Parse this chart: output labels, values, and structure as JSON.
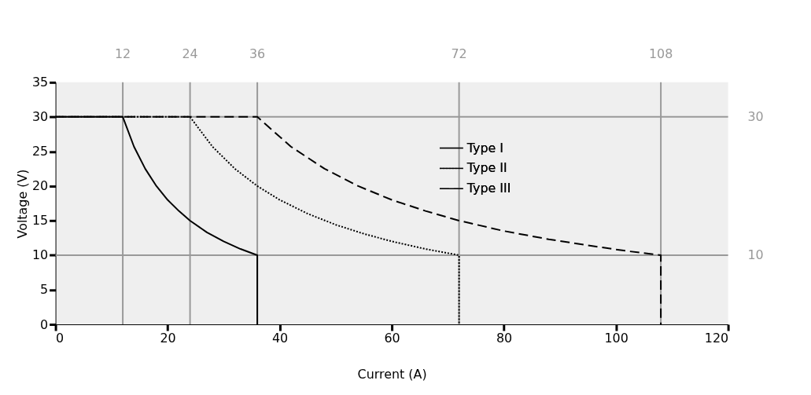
{
  "chart_data": {
    "type": "line",
    "xlabel": "Current (A)",
    "ylabel": "Voltage (V)",
    "xlim": [
      0,
      120
    ],
    "xticks": [
      0,
      20,
      40,
      60,
      80,
      100,
      120
    ],
    "ylim": [
      0,
      35
    ],
    "yticks": [
      0,
      5,
      10,
      15,
      20,
      25,
      30,
      35
    ],
    "grid": false,
    "legend": "right",
    "marker": "none",
    "series": [
      {
        "name": "Type I",
        "color": "#000000",
        "line_style": "solid",
        "x": [
          0,
          12,
          14,
          16,
          18,
          20,
          22,
          24,
          27,
          30,
          33,
          36,
          36
        ],
        "values": [
          30,
          30,
          25.7,
          22.5,
          20,
          18,
          16.4,
          15,
          13.3,
          12,
          10.9,
          10,
          0
        ]
      },
      {
        "name": "Type II",
        "color": "#000000",
        "line_style": "dotted",
        "x": [
          0,
          24,
          28,
          32,
          36,
          40,
          45,
          50,
          55,
          60,
          66,
          72,
          72
        ],
        "values": [
          30,
          30,
          25.7,
          22.5,
          20,
          18,
          16,
          14.4,
          13.1,
          12,
          10.9,
          10,
          0
        ]
      },
      {
        "name": "Type III",
        "color": "#000000",
        "line_style": "dashed",
        "x": [
          0,
          36,
          42,
          48,
          54,
          60,
          66,
          72,
          80,
          88,
          96,
          102,
          108,
          108
        ],
        "values": [
          30,
          30,
          25.7,
          22.5,
          20,
          18,
          16.4,
          15,
          13.5,
          12.3,
          11.3,
          10.6,
          10,
          0
        ]
      }
    ],
    "ref_lines": [
      {
        "axis": "x",
        "value": 12,
        "label": "12",
        "color": "#999999"
      },
      {
        "axis": "x",
        "value": 24,
        "label": "24",
        "color": "#999999"
      },
      {
        "axis": "x",
        "value": 36,
        "label": "36",
        "color": "#999999"
      },
      {
        "axis": "x",
        "value": 72,
        "label": "72",
        "color": "#999999"
      },
      {
        "axis": "x",
        "value": 108,
        "label": "108",
        "color": "#999999"
      },
      {
        "axis": "y",
        "value": 30,
        "label": "30",
        "color": "#999999"
      },
      {
        "axis": "y",
        "value": 10,
        "label": "10",
        "color": "#999999"
      }
    ]
  }
}
